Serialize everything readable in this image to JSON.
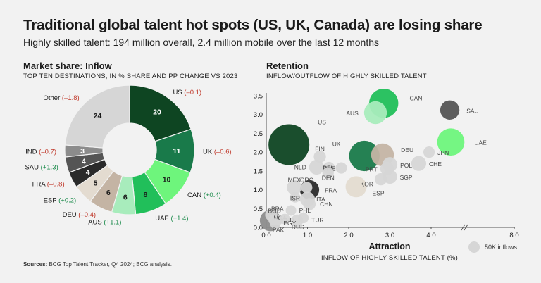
{
  "header": {
    "title": "Traditional global talent hot spots (US, UK, Canada) are losing share",
    "subtitle": "Highly skilled talent: 194 million overall, 2.4 million mobile over the last 12 months"
  },
  "left_panel": {
    "title": "Market share: Inflow",
    "subtitle": "TOP TEN DESTINATIONS, IN % SHARE AND PP CHANGE VS 2023"
  },
  "right_panel": {
    "title": "Retention",
    "subtitle": "INFLOW/OUTFLOW OF HIGHLY SKILLED TALENT"
  },
  "source": {
    "label": "Sources:",
    "text": "BCG Top Talent Tracker, Q4 2024; BCG analysis."
  },
  "colors": {
    "positive": "#1a8a4a",
    "negative": "#c0392b"
  },
  "chart_data": [
    {
      "type": "pie",
      "variant": "donut",
      "title": "Market share: Inflow",
      "slices": [
        {
          "label": "US",
          "value": 20,
          "change": "(–0.1)",
          "color": "#0e4522"
        },
        {
          "label": "UK",
          "value": 11,
          "change": "(–0.6)",
          "color": "#197a4a"
        },
        {
          "label": "CAN",
          "value": 10,
          "change": "(+0.4)",
          "color": "#6ef57c"
        },
        {
          "label": "UAE",
          "value": 8,
          "change": "(+1.4)",
          "color": "#21bf5a"
        },
        {
          "label": "AUS",
          "value": 6,
          "change": "(+1.1)",
          "color": "#a8ecbc"
        },
        {
          "label": "DEU",
          "value": 6,
          "change": "(–0.4)",
          "color": "#c4b4a4"
        },
        {
          "label": "ESP",
          "value": 5,
          "change": "(+0.2)",
          "color": "#e3dbd0"
        },
        {
          "label": "FRA",
          "value": 4,
          "change": "(–0.8)",
          "color": "#2a2a2a"
        },
        {
          "label": "SAU",
          "value": 4,
          "change": "(+1.3)",
          "color": "#555555"
        },
        {
          "label": "IND",
          "value": 3,
          "change": "(–0.7)",
          "color": "#8c8c8c"
        },
        {
          "label": "Other",
          "value": 24,
          "change": "(–1.8)",
          "color": "#d6d6d6"
        }
      ]
    },
    {
      "type": "scatter",
      "variant": "bubble",
      "title": "Retention",
      "xlabel": "Attraction",
      "xsublabel": "INFLOW OF HIGHLY SKILLED TALENT (%)",
      "ylabel": "",
      "xlim": [
        0,
        8
      ],
      "ylim": [
        0,
        3.5
      ],
      "xticks": [
        "0.0",
        "1.0",
        "2.0",
        "3.0",
        "4.0",
        "8.0"
      ],
      "yticks": [
        "0.0",
        "0.5",
        "1.0",
        "1.5",
        "2.0",
        "2.5",
        "3.0",
        "3.5"
      ],
      "size_legend": "50K inflows",
      "points": [
        {
          "label": "US",
          "x": 0.55,
          "y": 2.2,
          "size": 450,
          "color": "#0e4522"
        },
        {
          "label": "UK",
          "x": 2.38,
          "y": 1.9,
          "size": 250,
          "color": "#197a4a"
        },
        {
          "label": "CAN",
          "x": 2.85,
          "y": 3.3,
          "size": 230,
          "color": "#21bf5a"
        },
        {
          "label": "AUS",
          "x": 2.65,
          "y": 3.05,
          "size": 140,
          "color": "#a8ecbc"
        },
        {
          "label": "DEU",
          "x": 2.82,
          "y": 1.93,
          "size": 140,
          "color": "#c4b4a4"
        },
        {
          "label": "SAU",
          "x": 4.9,
          "y": 3.12,
          "size": 100,
          "color": "#555555"
        },
        {
          "label": "UAE",
          "x": 4.95,
          "y": 2.27,
          "size": 200,
          "color": "#6ef57c"
        },
        {
          "label": "FRA",
          "x": 1.05,
          "y": 1.0,
          "size": 100,
          "color": "#2a2a2a"
        },
        {
          "label": "ESP",
          "x": 2.18,
          "y": 1.08,
          "size": 120,
          "color": "#e3dbd0"
        },
        {
          "label": "JPN",
          "x": 3.95,
          "y": 2.0,
          "size": 35,
          "color": "#d6d6d6"
        },
        {
          "label": "CHE",
          "x": 3.7,
          "y": 1.7,
          "size": 60,
          "color": "#d6d6d6"
        },
        {
          "label": "POL",
          "x": 3.0,
          "y": 1.67,
          "size": 60,
          "color": "#d6d6d6"
        },
        {
          "label": "PRT",
          "x": 2.93,
          "y": 1.56,
          "size": 50,
          "color": "#d6d6d6"
        },
        {
          "label": "SGP",
          "x": 3.0,
          "y": 1.35,
          "size": 55,
          "color": "#d6d6d6"
        },
        {
          "label": "KOR",
          "x": 2.78,
          "y": 1.28,
          "size": 40,
          "color": "#d6d6d6"
        },
        {
          "label": "FIN",
          "x": 1.3,
          "y": 1.88,
          "size": 40,
          "color": "#d6d6d6"
        },
        {
          "label": "NLD",
          "x": 1.22,
          "y": 1.6,
          "size": 60,
          "color": "#d6d6d6"
        },
        {
          "label": "SWE",
          "x": 1.52,
          "y": 1.58,
          "size": 40,
          "color": "#d6d6d6"
        },
        {
          "label": "BEL",
          "x": 1.82,
          "y": 1.58,
          "size": 35,
          "color": "#d6d6d6"
        },
        {
          "label": "DEN",
          "x": 1.5,
          "y": 1.45,
          "size": 35,
          "color": "#d6d6d6"
        },
        {
          "label": "MEX",
          "x": 0.68,
          "y": 1.06,
          "size": 60,
          "color": "#d6d6d6"
        },
        {
          "label": "GRC",
          "x": 0.98,
          "y": 1.06,
          "size": 35,
          "color": "#d6d6d6"
        },
        {
          "label": "ISR",
          "x": 0.7,
          "y": 0.8,
          "size": 30,
          "color": "#d6d6d6"
        },
        {
          "label": "ITA",
          "x": 1.0,
          "y": 0.75,
          "size": 60,
          "color": "#d6d6d6"
        },
        {
          "label": "CHN",
          "x": 1.05,
          "y": 0.62,
          "size": 40,
          "color": "#d6d6d6"
        },
        {
          "label": "BRA",
          "x": 0.12,
          "y": 0.33,
          "size": 40,
          "color": "#d6d6d6"
        },
        {
          "label": "BGD",
          "x": 0.18,
          "y": 0.2,
          "size": 30,
          "color": "#d6d6d6"
        },
        {
          "label": "NGA",
          "x": 0.28,
          "y": 0.2,
          "size": 30,
          "color": "#d6d6d6"
        },
        {
          "label": "IND",
          "x": 0.1,
          "y": 0.18,
          "size": 120,
          "color": "#8c8c8c"
        },
        {
          "label": "PHL",
          "x": 0.6,
          "y": 0.45,
          "size": 30,
          "color": "#d6d6d6"
        },
        {
          "label": "EGY",
          "x": 0.45,
          "y": 0.22,
          "size": 30,
          "color": "#d6d6d6"
        },
        {
          "label": "TUR",
          "x": 0.9,
          "y": 0.25,
          "size": 30,
          "color": "#d6d6d6"
        },
        {
          "label": "RUS",
          "x": 0.75,
          "y": 0.18,
          "size": 40,
          "color": "#d6d6d6"
        },
        {
          "label": "PAK",
          "x": 0.22,
          "y": 0.1,
          "size": 30,
          "color": "#d6d6d6"
        }
      ]
    }
  ]
}
